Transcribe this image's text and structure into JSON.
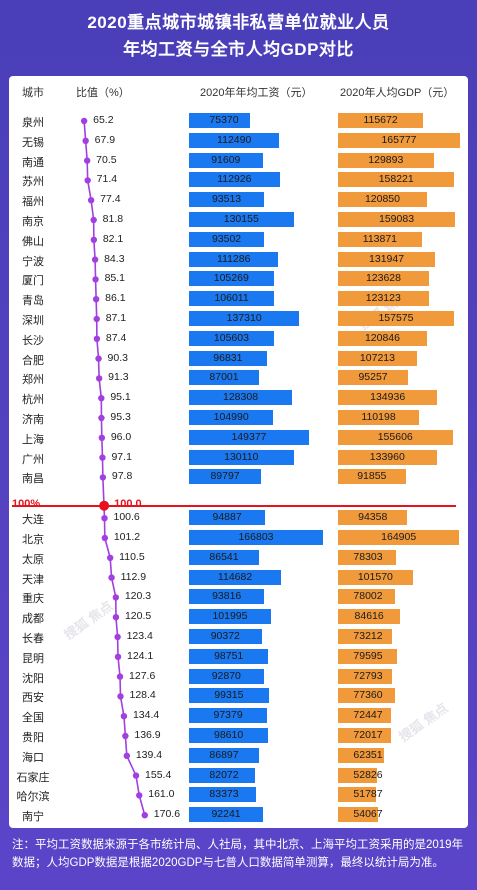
{
  "title": {
    "line1": "2020重点城市城镇非私营单位就业人员",
    "line2": "年均工资与全市人均GDP对比"
  },
  "headers": {
    "city": "城市",
    "ratio": "比值（%）",
    "wage": "2020年年均工资（元）",
    "gdp": "2020年人均GDP（元）"
  },
  "reference": {
    "label": "100%",
    "value_label": "100.0"
  },
  "watermark": "搜狐 焦点",
  "footnote": "注：平均工资数据来源于各市统计局、人社局，其中北京、上海平均工资采用的是2019年数据；人均GDP数据是根据2020GDP与七普人口数据简单测算，最终以统计局为准。",
  "colors": {
    "wage": "#1a78f0",
    "gdp": "#f19a3c",
    "ratio": "#a13fe0",
    "reference": "#e4141e"
  },
  "chart_data": {
    "type": "table",
    "columns": [
      "城市",
      "比值（%）",
      "2020年年均工资（元）",
      "2020年人均GDP（元）"
    ],
    "rows": [
      {
        "city": "泉州",
        "ratio": "65.2",
        "wage": "75370",
        "gdp": "115672"
      },
      {
        "city": "无锡",
        "ratio": "67.9",
        "wage": "112490",
        "gdp": "165777"
      },
      {
        "city": "南通",
        "ratio": "70.5",
        "wage": "91609",
        "gdp": "129893"
      },
      {
        "city": "苏州",
        "ratio": "71.4",
        "wage": "112926",
        "gdp": "158221"
      },
      {
        "city": "福州",
        "ratio": "77.4",
        "wage": "93513",
        "gdp": "120850"
      },
      {
        "city": "南京",
        "ratio": "81.8",
        "wage": "130155",
        "gdp": "159083"
      },
      {
        "city": "佛山",
        "ratio": "82.1",
        "wage": "93502",
        "gdp": "113871"
      },
      {
        "city": "宁波",
        "ratio": "84.3",
        "wage": "111286",
        "gdp": "131947"
      },
      {
        "city": "厦门",
        "ratio": "85.1",
        "wage": "105269",
        "gdp": "123628"
      },
      {
        "city": "青岛",
        "ratio": "86.1",
        "wage": "106011",
        "gdp": "123123"
      },
      {
        "city": "深圳",
        "ratio": "87.1",
        "wage": "137310",
        "gdp": "157575"
      },
      {
        "city": "长沙",
        "ratio": "87.4",
        "wage": "105603",
        "gdp": "120846"
      },
      {
        "city": "合肥",
        "ratio": "90.3",
        "wage": "96831",
        "gdp": "107213"
      },
      {
        "city": "郑州",
        "ratio": "91.3",
        "wage": "87001",
        "gdp": "95257"
      },
      {
        "city": "杭州",
        "ratio": "95.1",
        "wage": "128308",
        "gdp": "134936"
      },
      {
        "city": "济南",
        "ratio": "95.3",
        "wage": "104990",
        "gdp": "110198"
      },
      {
        "city": "上海",
        "ratio": "96.0",
        "wage": "149377",
        "gdp": "155606"
      },
      {
        "city": "广州",
        "ratio": "97.1",
        "wage": "130110",
        "gdp": "133960"
      },
      {
        "city": "南昌",
        "ratio": "97.8",
        "wage": "89797",
        "gdp": "91855"
      },
      {
        "city": "大连",
        "ratio": "100.6",
        "wage": "94887",
        "gdp": "94358"
      },
      {
        "city": "北京",
        "ratio": "101.2",
        "wage": "166803",
        "gdp": "164905"
      },
      {
        "city": "太原",
        "ratio": "110.5",
        "wage": "86541",
        "gdp": "78303"
      },
      {
        "city": "天津",
        "ratio": "112.9",
        "wage": "114682",
        "gdp": "101570"
      },
      {
        "city": "重庆",
        "ratio": "120.3",
        "wage": "93816",
        "gdp": "78002"
      },
      {
        "city": "成都",
        "ratio": "120.5",
        "wage": "101995",
        "gdp": "84616"
      },
      {
        "city": "长春",
        "ratio": "123.4",
        "wage": "90372",
        "gdp": "73212"
      },
      {
        "city": "昆明",
        "ratio": "124.1",
        "wage": "98751",
        "gdp": "79595"
      },
      {
        "city": "沈阳",
        "ratio": "127.6",
        "wage": "92870",
        "gdp": "72793"
      },
      {
        "city": "西安",
        "ratio": "128.4",
        "wage": "99315",
        "gdp": "77360"
      },
      {
        "city": "全国",
        "ratio": "134.4",
        "wage": "97379",
        "gdp": "72447"
      },
      {
        "city": "贵阳",
        "ratio": "136.9",
        "wage": "98610",
        "gdp": "72017"
      },
      {
        "city": "海口",
        "ratio": "139.4",
        "wage": "86897",
        "gdp": "62351"
      },
      {
        "city": "石家庄",
        "ratio": "155.4",
        "wage": "82072",
        "gdp": "52826"
      },
      {
        "city": "哈尔滨",
        "ratio": "161.0",
        "wage": "83373",
        "gdp": "51787"
      },
      {
        "city": "南宁",
        "ratio": "170.6",
        "wage": "92241",
        "gdp": "54067"
      }
    ]
  }
}
